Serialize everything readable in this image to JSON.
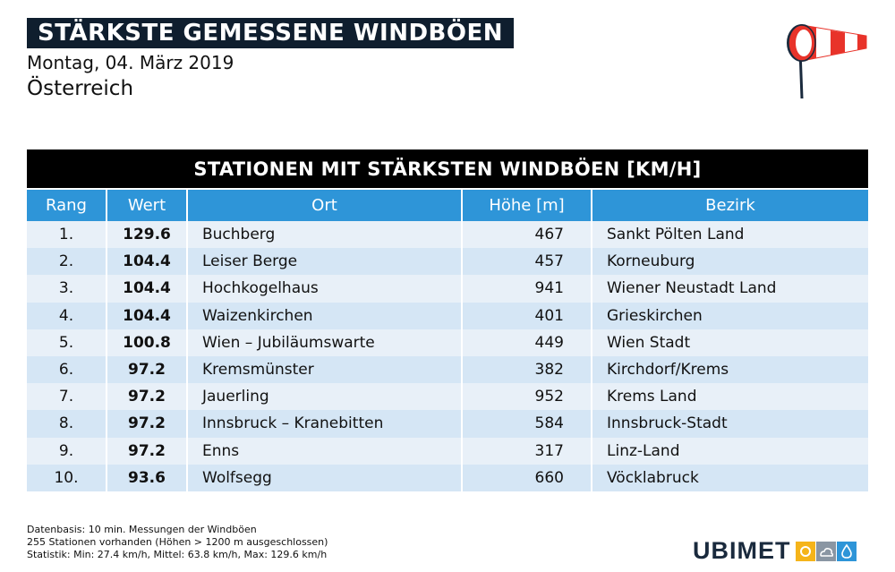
{
  "header": {
    "title": "STÄRKSTE GEMESSENE WINDBÖEN",
    "date": "Montag, 04. März 2019",
    "region": "Österreich"
  },
  "table": {
    "title": "STATIONEN MIT STÄRKSTEN WINDBÖEN [KM/H]",
    "columns": [
      "Rang",
      "Wert",
      "Ort",
      "Höhe [m]",
      "Bezirk"
    ],
    "rows": [
      {
        "rang": "1.",
        "wert": "129.6",
        "ort": "Buchberg",
        "hoehe": "467",
        "bezirk": "Sankt Pölten Land"
      },
      {
        "rang": "2.",
        "wert": "104.4",
        "ort": "Leiser Berge",
        "hoehe": "457",
        "bezirk": "Korneuburg"
      },
      {
        "rang": "3.",
        "wert": "104.4",
        "ort": "Hochkogelhaus",
        "hoehe": "941",
        "bezirk": "Wiener Neustadt Land"
      },
      {
        "rang": "4.",
        "wert": "104.4",
        "ort": "Waizenkirchen",
        "hoehe": "401",
        "bezirk": "Grieskirchen"
      },
      {
        "rang": "5.",
        "wert": "100.8",
        "ort": "Wien – Jubiläumswarte",
        "hoehe": "449",
        "bezirk": "Wien Stadt"
      },
      {
        "rang": "6.",
        "wert": "97.2",
        "ort": "Kremsmünster",
        "hoehe": "382",
        "bezirk": "Kirchdorf/Krems"
      },
      {
        "rang": "7.",
        "wert": "97.2",
        "ort": "Jauerling",
        "hoehe": "952",
        "bezirk": "Krems Land"
      },
      {
        "rang": "8.",
        "wert": "97.2",
        "ort": "Innsbruck – Kranebitten",
        "hoehe": "584",
        "bezirk": "Innsbruck-Stadt"
      },
      {
        "rang": "9.",
        "wert": "97.2",
        "ort": "Enns",
        "hoehe": "317",
        "bezirk": "Linz-Land"
      },
      {
        "rang": "10.",
        "wert": "93.6",
        "ort": "Wolfsegg",
        "hoehe": "660",
        "bezirk": "Vöcklabruck"
      }
    ]
  },
  "footer": {
    "line1": "Datenbasis: 10 min. Messungen der Windböen",
    "line2": "255 Stationen vorhanden (Höhen > 1200 m ausgeschlossen)",
    "line3": "Statistik: Min: 27.4 km/h, Mittel: 63.8 km/h, Max: 129.6 km/h"
  },
  "logo": {
    "text": "UBIMET"
  },
  "colors": {
    "title_bg": "#0f1e2e",
    "table_title_bg": "#000000",
    "column_header_bg": "#2e95d8",
    "row_light": "#e8f0f8",
    "row_dark": "#d5e6f5",
    "windsock_red": "#e8332a",
    "logo_sun": "#f5b41a",
    "logo_cloud": "#8a96a3",
    "logo_drop": "#2e95d8"
  }
}
